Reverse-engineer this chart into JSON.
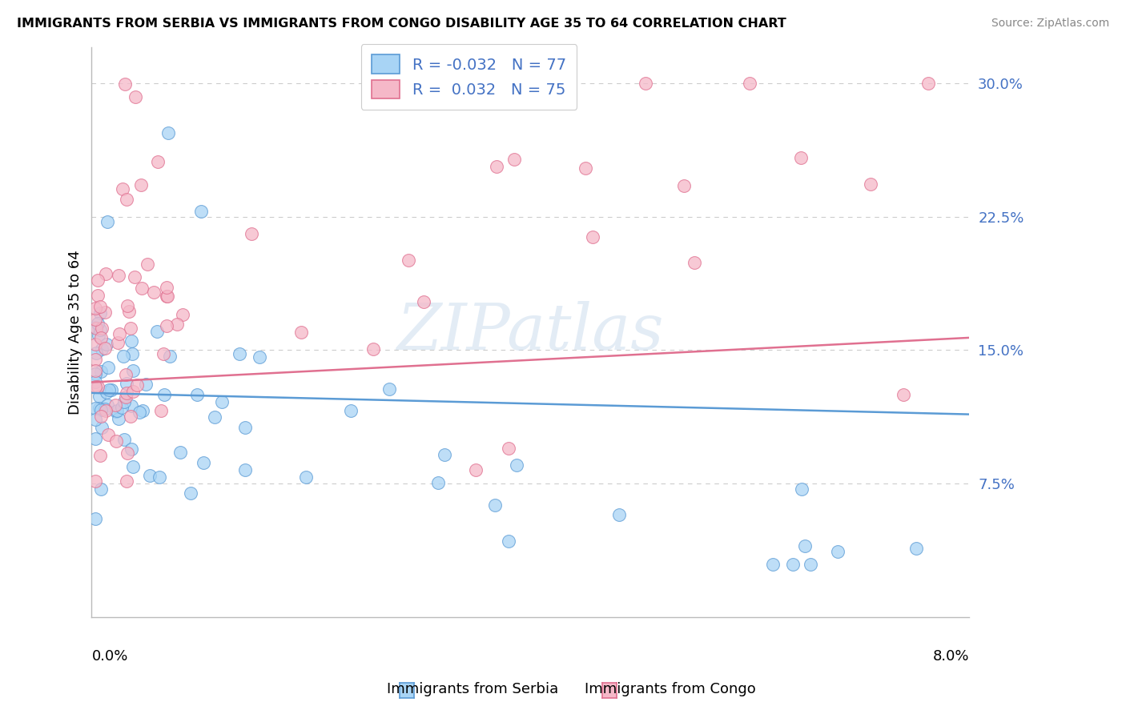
{
  "title": "IMMIGRANTS FROM SERBIA VS IMMIGRANTS FROM CONGO DISABILITY AGE 35 TO 64 CORRELATION CHART",
  "source": "Source: ZipAtlas.com",
  "ylabel": "Disability Age 35 to 64",
  "xlim": [
    0.0,
    0.08
  ],
  "ylim": [
    0.0,
    0.32
  ],
  "serbia_R": -0.032,
  "serbia_N": 77,
  "congo_R": 0.032,
  "congo_N": 75,
  "serbia_color": "#A8D4F5",
  "congo_color": "#F5B8C8",
  "serbia_edge_color": "#5B9BD5",
  "congo_edge_color": "#E07090",
  "serbia_line_color": "#5B9BD5",
  "congo_line_color": "#E07090",
  "ytick_vals": [
    0.075,
    0.15,
    0.225,
    0.3
  ],
  "ytick_labels": [
    "7.5%",
    "15.0%",
    "22.5%",
    "30.0%"
  ],
  "ytick_color": "#4472C4",
  "watermark": "ZIPatlas",
  "legend_text_color": "#4472C4",
  "serbia_trend_y0": 0.126,
  "serbia_trend_y1": 0.114,
  "congo_trend_y0": 0.132,
  "congo_trend_y1": 0.157
}
